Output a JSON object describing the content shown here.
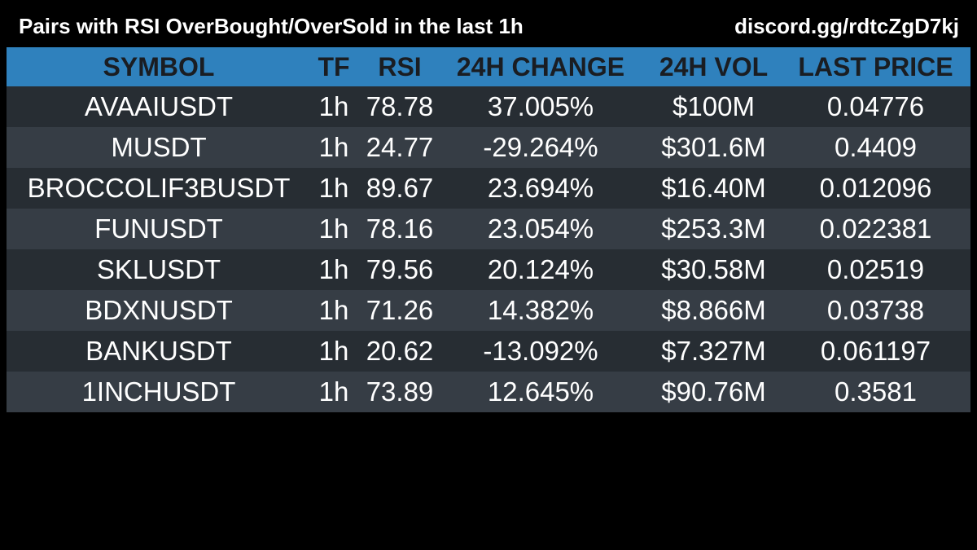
{
  "header": {
    "title": "Pairs with RSI OverBought/OverSold in the last 1h",
    "link": "discord.gg/rdtcZgD7kj"
  },
  "table": {
    "columns": [
      "SYMBOL",
      "TF",
      "RSI",
      "24H CHANGE",
      "24H VOL",
      "LAST PRICE"
    ],
    "rows": [
      {
        "symbol": "AVAAIUSDT",
        "tf": "1h",
        "rsi": "78.78",
        "change": "37.005%",
        "vol": "$100M",
        "price": "0.04776"
      },
      {
        "symbol": "MUSDT",
        "tf": "1h",
        "rsi": "24.77",
        "change": "-29.264%",
        "vol": "$301.6M",
        "price": "0.4409"
      },
      {
        "symbol": "BROCCOLIF3BUSDT",
        "tf": "1h",
        "rsi": "89.67",
        "change": "23.694%",
        "vol": "$16.40M",
        "price": "0.012096"
      },
      {
        "symbol": "FUNUSDT",
        "tf": "1h",
        "rsi": "78.16",
        "change": "23.054%",
        "vol": "$253.3M",
        "price": "0.022381"
      },
      {
        "symbol": "SKLUSDT",
        "tf": "1h",
        "rsi": "79.56",
        "change": "20.124%",
        "vol": "$30.58M",
        "price": "0.02519"
      },
      {
        "symbol": "BDXNUSDT",
        "tf": "1h",
        "rsi": "71.26",
        "change": "14.382%",
        "vol": "$8.866M",
        "price": "0.03738"
      },
      {
        "symbol": "BANKUSDT",
        "tf": "1h",
        "rsi": "20.62",
        "change": "-13.092%",
        "vol": "$7.327M",
        "price": "0.061197"
      },
      {
        "symbol": "1INCHUSDT",
        "tf": "1h",
        "rsi": "73.89",
        "change": "12.645%",
        "vol": "$90.76M",
        "price": "0.3581"
      }
    ]
  },
  "colors": {
    "background": "#000000",
    "header_bg": "#2f81bd",
    "header_text": "#1a1d22",
    "row_dark": "#272d33",
    "row_light": "#363d45",
    "text": "#ffffff"
  }
}
